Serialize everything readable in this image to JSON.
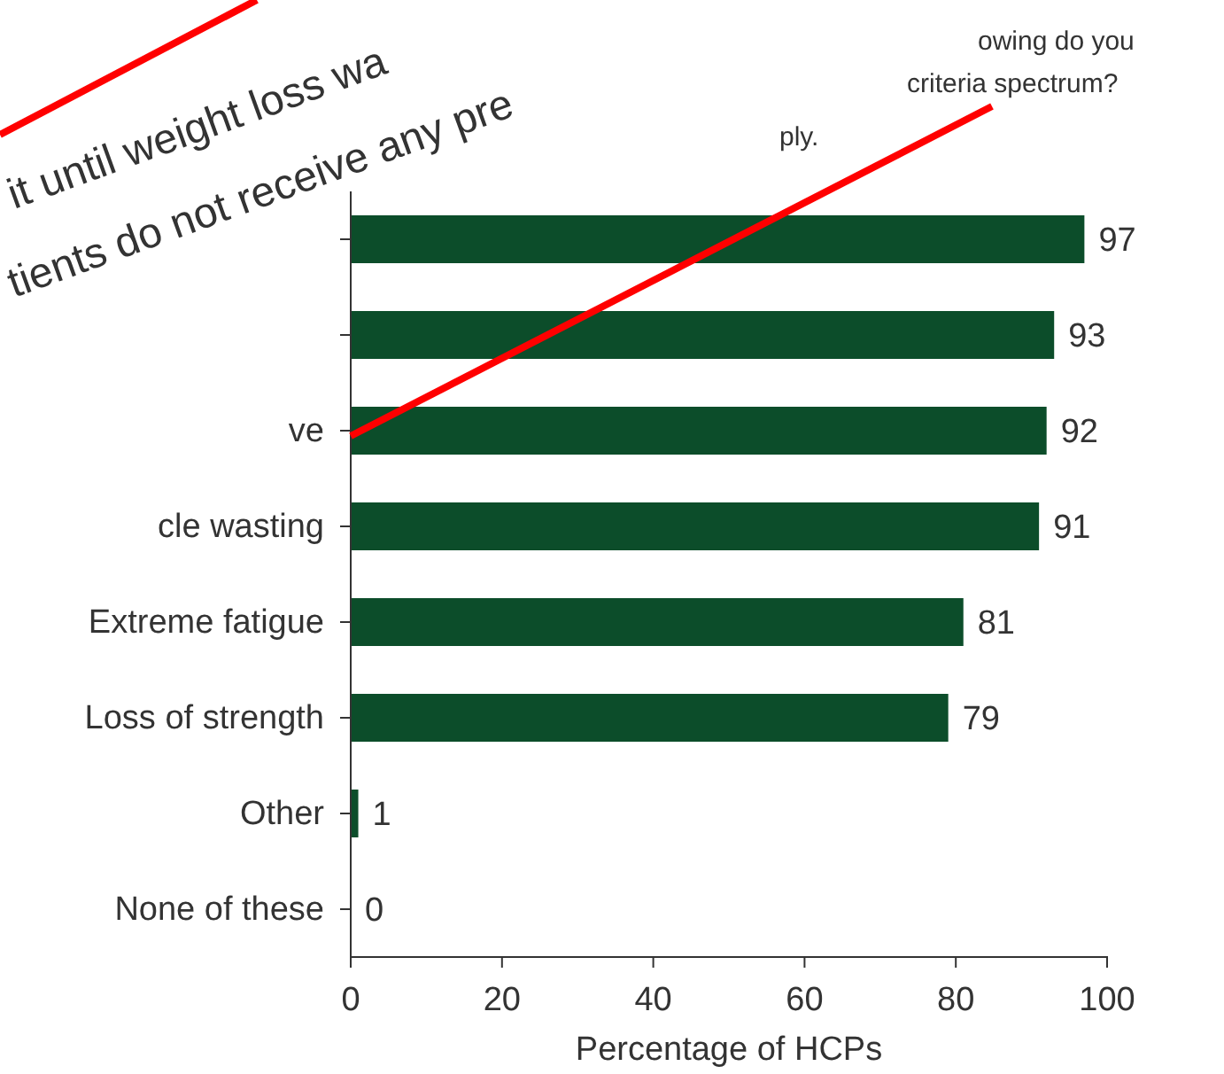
{
  "chart_data": {
    "type": "bar",
    "orientation": "horizontal",
    "categories": [
      null,
      null,
      "ve",
      "cle wasting",
      "Extreme fatigue",
      "Loss of strength",
      "Other",
      "None of these"
    ],
    "values": [
      97,
      93,
      92,
      91,
      81,
      79,
      1,
      0
    ],
    "color": "#0c4d2a",
    "xlim": [
      0,
      100
    ],
    "xticks": [
      0,
      20,
      40,
      60,
      80,
      100
    ],
    "xlabel": "Percentage of HCPs",
    "data_labels": true,
    "grid": false,
    "annotations": [
      "owing do you",
      "criteria spectrum?",
      "ply.",
      "it until weight loss wa",
      "tients do not receive any pre"
    ]
  }
}
